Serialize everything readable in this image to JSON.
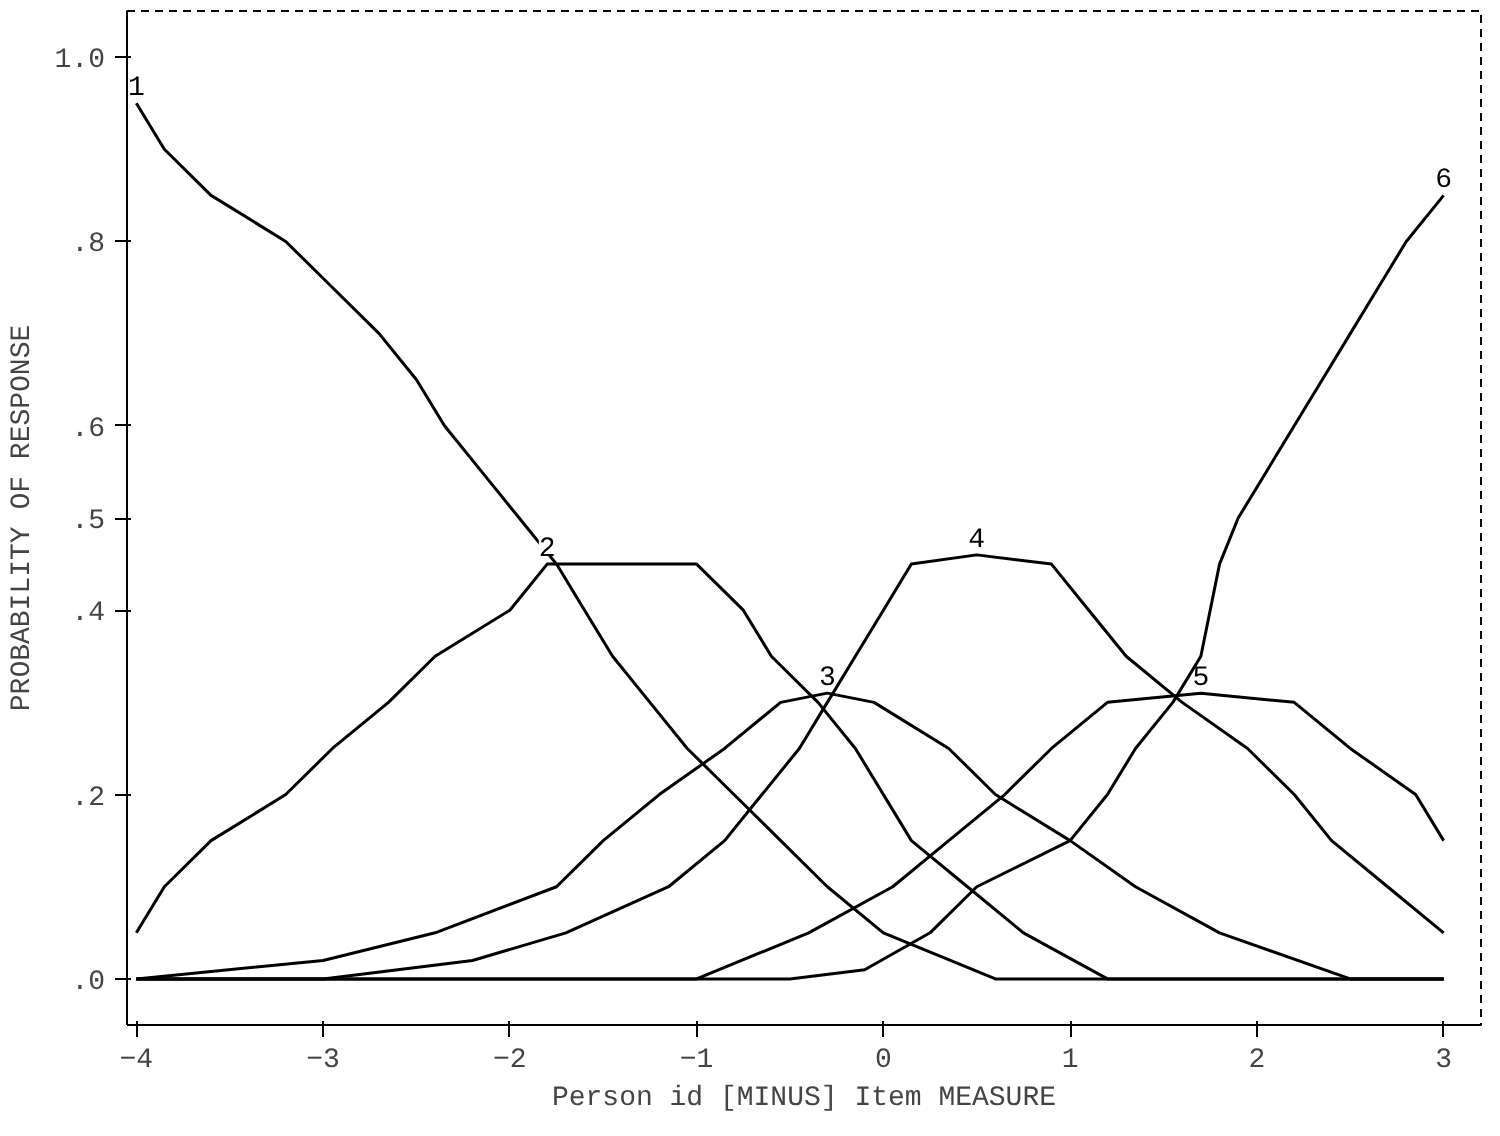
{
  "chart_data": {
    "type": "line",
    "xlabel": "Person id [MINUS] Item MEASURE",
    "ylabel": "PROBABILITY OF RESPONSE",
    "xlim": [
      -4.05,
      3.2
    ],
    "ylim": [
      -0.05,
      1.05
    ],
    "xticks": [
      -4,
      -3,
      -2,
      -1,
      0,
      1,
      2,
      3
    ],
    "yticks": [
      {
        "value": 0,
        "label": ".0"
      },
      {
        "value": 0.2,
        "label": ".2"
      },
      {
        "value": 0.4,
        "label": ".4"
      },
      {
        "value": 0.5,
        "label": ".5"
      },
      {
        "value": 0.6,
        "label": ".6"
      },
      {
        "value": 0.8,
        "label": ".8"
      },
      {
        "value": 1.0,
        "label": "1.0"
      }
    ],
    "grid": false,
    "line_style": "solid",
    "series": [
      {
        "name": "1",
        "color": "#000000",
        "x": [
          -4,
          -3.85,
          -3.6,
          -3.2,
          -2.95,
          -2.7,
          -2.5,
          -2.35,
          -2.15,
          -1.95,
          -1.75,
          -1.6,
          -1.45,
          -1.25,
          -1.05,
          -0.8,
          -0.55,
          -0.3,
          0.0,
          0.6,
          3
        ],
        "values": [
          0.95,
          0.9,
          0.85,
          0.8,
          0.75,
          0.7,
          0.65,
          0.6,
          0.55,
          0.5,
          0.45,
          0.4,
          0.35,
          0.3,
          0.25,
          0.2,
          0.15,
          0.1,
          0.05,
          0.0,
          0.0
        ]
      },
      {
        "name": "2",
        "color": "#000000",
        "x": [
          -4,
          -3.85,
          -3.6,
          -3.2,
          -2.95,
          -2.65,
          -2.4,
          -2.0,
          -1.8,
          -1.0,
          -0.75,
          -0.6,
          -0.35,
          -0.15,
          0.15,
          0.45,
          0.75,
          1.2,
          3
        ],
        "values": [
          0.05,
          0.1,
          0.15,
          0.2,
          0.25,
          0.3,
          0.35,
          0.4,
          0.45,
          0.45,
          0.4,
          0.35,
          0.3,
          0.25,
          0.15,
          0.1,
          0.05,
          0.0,
          0.0
        ]
      },
      {
        "name": "3",
        "color": "#000000",
        "x": [
          -4,
          -3.0,
          -2.4,
          -1.75,
          -1.5,
          -1.2,
          -0.85,
          -0.55,
          -0.3,
          -0.05,
          0.35,
          0.6,
          1.0,
          1.35,
          1.8,
          2.5,
          3
        ],
        "values": [
          0.0,
          0.02,
          0.05,
          0.1,
          0.15,
          0.2,
          0.25,
          0.3,
          0.31,
          0.3,
          0.25,
          0.2,
          0.15,
          0.1,
          0.05,
          0.0,
          0.0
        ]
      },
      {
        "name": "4",
        "color": "#000000",
        "x": [
          -4,
          -3.0,
          -2.2,
          -1.7,
          -1.15,
          -0.85,
          -0.65,
          -0.45,
          -0.3,
          -0.15,
          0.0,
          0.15,
          0.5,
          0.9,
          1.1,
          1.3,
          1.6,
          1.95,
          2.2,
          2.4,
          2.7,
          3
        ],
        "values": [
          0.0,
          0.0,
          0.02,
          0.05,
          0.1,
          0.15,
          0.2,
          0.25,
          0.3,
          0.35,
          0.4,
          0.45,
          0.46,
          0.45,
          0.4,
          0.35,
          0.3,
          0.25,
          0.2,
          0.15,
          0.1,
          0.05
        ]
      },
      {
        "name": "5",
        "color": "#000000",
        "x": [
          -4,
          -1.0,
          -0.4,
          0.05,
          0.35,
          0.65,
          0.9,
          1.2,
          1.7,
          2.2,
          2.5,
          2.85,
          3
        ],
        "values": [
          0.0,
          0.0,
          0.05,
          0.1,
          0.15,
          0.2,
          0.25,
          0.3,
          0.31,
          0.3,
          0.25,
          0.2,
          0.15
        ]
      },
      {
        "name": "6",
        "color": "#000000",
        "x": [
          -4,
          -0.5,
          -0.1,
          0.25,
          0.5,
          1.0,
          1.2,
          1.35,
          1.55,
          1.7,
          1.8,
          1.9,
          2.05,
          2.2,
          2.35,
          2.5,
          2.65,
          2.8,
          3
        ],
        "values": [
          0.0,
          0.0,
          0.01,
          0.05,
          0.1,
          0.15,
          0.2,
          0.25,
          0.3,
          0.35,
          0.45,
          0.5,
          0.55,
          0.6,
          0.65,
          0.7,
          0.75,
          0.8,
          0.85
        ]
      }
    ]
  }
}
